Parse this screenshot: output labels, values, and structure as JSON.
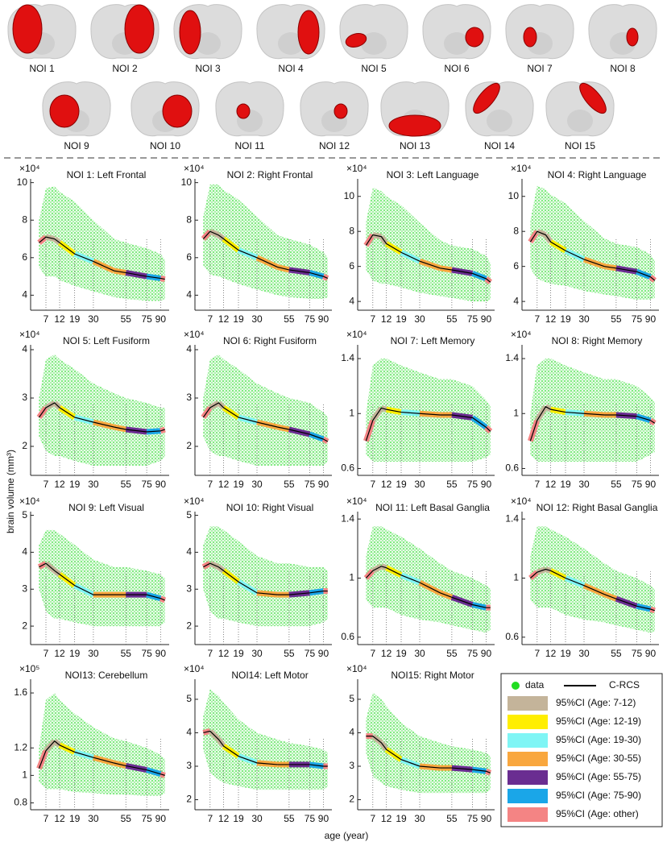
{
  "regions": [
    "NOI 1",
    "NOI 2",
    "NOI 3",
    "NOI 4",
    "NOI 5",
    "NOI 6",
    "NOI 7",
    "NOI 8",
    "NOI 9",
    "NOI 10",
    "NOI 11",
    "NOI 12",
    "NOI 13",
    "NOI 14",
    "NOI 15"
  ],
  "xlabel": "age (year)",
  "ylabel": "brain volume (mm³)",
  "legend": {
    "data": {
      "name": "data",
      "color": "#22dd22"
    },
    "fit": {
      "name": "C-RCS",
      "color": "#000000"
    },
    "intervals": [
      {
        "name": "95%CI (Age: 7-12)",
        "color": "#c4b49a"
      },
      {
        "name": "95%CI (Age: 12-19)",
        "color": "#ffee00"
      },
      {
        "name": "95%CI (Age: 19-30)",
        "color": "#7ff5f5"
      },
      {
        "name": "95%CI (Age: 30-55)",
        "color": "#f9a73e"
      },
      {
        "name": "95%CI (Age: 55-75)",
        "color": "#6a2d91"
      },
      {
        "name": "95%CI (Age: 75-90)",
        "color": "#1aa6e8"
      },
      {
        "name": "95%CI (Age: other)",
        "color": "#f48484"
      }
    ]
  },
  "chart_data": [
    {
      "type": "line",
      "title": "NOI 1: Left Frontal",
      "y_multiplier": "×10⁴",
      "x": [
        5,
        7,
        10,
        12,
        19,
        30,
        45,
        55,
        75,
        90,
        95
      ],
      "xlim": [
        3,
        100
      ],
      "xscale": "sqrt",
      "xticks": [
        7,
        12,
        19,
        30,
        55,
        75,
        90
      ],
      "ylim": [
        3.2,
        10.2
      ],
      "yticks": [
        4,
        6,
        8,
        10
      ],
      "fit": [
        6.8,
        7.1,
        7.0,
        6.8,
        6.2,
        5.8,
        5.3,
        5.2,
        5.0,
        4.9,
        4.85
      ],
      "data_low": [
        5.5,
        5,
        5,
        4.8,
        4.5,
        4.2,
        3.9,
        3.8,
        3.7,
        3.7,
        3.8
      ],
      "data_high": [
        8,
        9.7,
        9.8,
        9.5,
        9,
        8,
        7,
        6.8,
        6.5,
        6.2,
        5.9
      ]
    },
    {
      "type": "line",
      "title": "NOI 2: Right Frontal",
      "y_multiplier": "×10⁴",
      "x": [
        5,
        7,
        10,
        12,
        19,
        30,
        45,
        55,
        75,
        90,
        95
      ],
      "xlim": [
        3,
        100
      ],
      "xscale": "sqrt",
      "xticks": [
        7,
        12,
        19,
        30,
        55,
        75,
        90
      ],
      "ylim": [
        3.2,
        10.2
      ],
      "yticks": [
        4,
        6,
        8,
        10
      ],
      "fit": [
        7.0,
        7.4,
        7.2,
        7.0,
        6.4,
        6.0,
        5.5,
        5.35,
        5.2,
        5.0,
        4.9
      ],
      "data_low": [
        5.6,
        5.1,
        5,
        4.9,
        4.6,
        4.3,
        4,
        3.9,
        3.8,
        3.8,
        3.9
      ],
      "data_high": [
        8.2,
        9.9,
        9.9,
        9.6,
        9.1,
        8.2,
        7.2,
        7,
        6.7,
        6.3,
        6
      ]
    },
    {
      "type": "line",
      "title": "NOI 3: Left Language",
      "y_multiplier": "×10⁴",
      "x": [
        5,
        7,
        10,
        12,
        19,
        30,
        45,
        55,
        75,
        90,
        95
      ],
      "xlim": [
        3,
        100
      ],
      "xscale": "sqrt",
      "xticks": [
        7,
        12,
        19,
        30,
        55,
        75,
        90
      ],
      "ylim": [
        3.5,
        11
      ],
      "yticks": [
        4,
        6,
        8,
        10
      ],
      "fit": [
        7.2,
        7.8,
        7.7,
        7.3,
        6.8,
        6.3,
        5.9,
        5.8,
        5.6,
        5.3,
        5.1
      ],
      "data_low": [
        5.8,
        5.2,
        5,
        5,
        4.8,
        4.5,
        4.3,
        4.2,
        4,
        4,
        4.1
      ],
      "data_high": [
        8.5,
        10.5,
        10.3,
        10,
        9.5,
        8.5,
        7.5,
        7.2,
        7,
        6.6,
        6.2
      ]
    },
    {
      "type": "line",
      "title": "NOI 4: Right Language",
      "y_multiplier": "×10⁴",
      "x": [
        5,
        7,
        10,
        12,
        19,
        30,
        45,
        55,
        75,
        90,
        95
      ],
      "xlim": [
        3,
        100
      ],
      "xscale": "sqrt",
      "xticks": [
        7,
        12,
        19,
        30,
        55,
        75,
        90
      ],
      "ylim": [
        3.5,
        11
      ],
      "yticks": [
        4,
        6,
        8,
        10
      ],
      "fit": [
        7.4,
        8.0,
        7.8,
        7.4,
        6.9,
        6.4,
        6.0,
        5.9,
        5.7,
        5.4,
        5.2
      ],
      "data_low": [
        5.9,
        5.3,
        5.1,
        5,
        4.9,
        4.6,
        4.4,
        4.3,
        4.1,
        4.1,
        4.2
      ],
      "data_high": [
        8.6,
        10.6,
        10.4,
        10.1,
        9.6,
        8.6,
        7.6,
        7.3,
        7.1,
        6.7,
        6.3
      ]
    },
    {
      "type": "line",
      "title": "NOI 5: Left Fusiform",
      "y_multiplier": "×10⁴",
      "x": [
        5,
        7,
        10,
        12,
        19,
        30,
        45,
        55,
        75,
        90,
        95
      ],
      "xlim": [
        3,
        100
      ],
      "xscale": "sqrt",
      "xticks": [
        7,
        12,
        19,
        30,
        55,
        75,
        90
      ],
      "ylim": [
        1.4,
        4.1
      ],
      "yticks": [
        2,
        3,
        4
      ],
      "fit": [
        2.6,
        2.8,
        2.9,
        2.8,
        2.6,
        2.5,
        2.4,
        2.35,
        2.3,
        2.32,
        2.35
      ],
      "data_low": [
        2.2,
        1.9,
        1.8,
        1.8,
        1.7,
        1.6,
        1.6,
        1.6,
        1.6,
        1.7,
        1.8
      ],
      "data_high": [
        3.0,
        3.8,
        3.9,
        3.8,
        3.6,
        3.3,
        3.1,
        3.0,
        2.9,
        2.8,
        2.8
      ]
    },
    {
      "type": "line",
      "title": "NOI 6: Right Fusiform",
      "y_multiplier": "×10⁴",
      "x": [
        5,
        7,
        10,
        12,
        19,
        30,
        45,
        55,
        75,
        90,
        95
      ],
      "xlim": [
        3,
        100
      ],
      "xscale": "sqrt",
      "xticks": [
        7,
        12,
        19,
        30,
        55,
        75,
        90
      ],
      "ylim": [
        1.4,
        4.1
      ],
      "yticks": [
        2,
        3,
        4
      ],
      "fit": [
        2.6,
        2.8,
        2.9,
        2.8,
        2.6,
        2.5,
        2.4,
        2.35,
        2.25,
        2.15,
        2.1
      ],
      "data_low": [
        2.2,
        1.9,
        1.8,
        1.8,
        1.7,
        1.6,
        1.6,
        1.6,
        1.6,
        1.6,
        1.7
      ],
      "data_high": [
        3.0,
        3.8,
        3.9,
        3.8,
        3.6,
        3.3,
        3.1,
        3.0,
        2.9,
        2.7,
        2.6
      ]
    },
    {
      "type": "line",
      "title": "NOI 7: Left Memory",
      "y_multiplier": "×10⁴",
      "x": [
        5,
        7,
        10,
        12,
        19,
        30,
        45,
        55,
        75,
        90,
        95
      ],
      "xlim": [
        3,
        100
      ],
      "xscale": "sqrt",
      "xticks": [
        7,
        12,
        19,
        30,
        55,
        75,
        90
      ],
      "ylim": [
        0.55,
        1.5
      ],
      "yticks": [
        0.6,
        1,
        1.4
      ],
      "fit": [
        0.8,
        0.95,
        1.04,
        1.03,
        1.01,
        1.0,
        0.99,
        0.99,
        0.97,
        0.9,
        0.87
      ],
      "data_low": [
        0.7,
        0.65,
        0.65,
        0.65,
        0.65,
        0.65,
        0.65,
        0.65,
        0.65,
        0.68,
        0.7
      ],
      "data_high": [
        1.0,
        1.35,
        1.4,
        1.4,
        1.35,
        1.3,
        1.25,
        1.25,
        1.2,
        1.1,
        1.05
      ]
    },
    {
      "type": "line",
      "title": "NOI 8: Right Memory",
      "y_multiplier": "×10⁴",
      "x": [
        5,
        7,
        10,
        12,
        19,
        30,
        45,
        55,
        75,
        90,
        95
      ],
      "xlim": [
        3,
        100
      ],
      "xscale": "sqrt",
      "xticks": [
        7,
        12,
        19,
        30,
        55,
        75,
        90
      ],
      "ylim": [
        0.55,
        1.5
      ],
      "yticks": [
        0.6,
        1,
        1.4
      ],
      "fit": [
        0.8,
        0.95,
        1.05,
        1.03,
        1.01,
        1.0,
        0.99,
        0.99,
        0.98,
        0.95,
        0.93
      ],
      "data_low": [
        0.7,
        0.65,
        0.65,
        0.65,
        0.65,
        0.65,
        0.65,
        0.65,
        0.65,
        0.7,
        0.72
      ],
      "data_high": [
        1.0,
        1.35,
        1.4,
        1.4,
        1.35,
        1.3,
        1.25,
        1.25,
        1.2,
        1.12,
        1.08
      ]
    },
    {
      "type": "line",
      "title": "NOI 9: Left Visual",
      "y_multiplier": "×10⁴",
      "x": [
        5,
        7,
        10,
        12,
        19,
        30,
        45,
        55,
        75,
        90,
        95
      ],
      "xlim": [
        3,
        100
      ],
      "xscale": "sqrt",
      "xticks": [
        7,
        12,
        19,
        30,
        55,
        75,
        90
      ],
      "ylim": [
        1.5,
        5.1
      ],
      "yticks": [
        2,
        3,
        4,
        5
      ],
      "fit": [
        3.6,
        3.7,
        3.5,
        3.4,
        3.1,
        2.85,
        2.85,
        2.85,
        2.85,
        2.75,
        2.7
      ],
      "data_low": [
        3,
        2.4,
        2.2,
        2.2,
        2.1,
        2,
        2,
        2,
        2,
        2,
        2.1
      ],
      "data_high": [
        4.2,
        4.6,
        4.6,
        4.5,
        4.2,
        3.8,
        3.6,
        3.6,
        3.5,
        3.4,
        3.3
      ]
    },
    {
      "type": "line",
      "title": "NOI 10: Right Visual",
      "y_multiplier": "×10⁴",
      "x": [
        5,
        7,
        10,
        12,
        19,
        30,
        45,
        55,
        75,
        90,
        95
      ],
      "xlim": [
        3,
        100
      ],
      "xscale": "sqrt",
      "xticks": [
        7,
        12,
        19,
        30,
        55,
        75,
        90
      ],
      "ylim": [
        1.5,
        5.1
      ],
      "yticks": [
        2,
        3,
        4,
        5
      ],
      "fit": [
        3.6,
        3.7,
        3.6,
        3.5,
        3.2,
        2.9,
        2.85,
        2.85,
        2.9,
        2.95,
        2.95
      ],
      "data_low": [
        3,
        2.4,
        2.2,
        2.2,
        2.1,
        2,
        2,
        2,
        2,
        2.1,
        2.2
      ],
      "data_high": [
        4.2,
        4.7,
        4.7,
        4.6,
        4.3,
        3.9,
        3.7,
        3.7,
        3.6,
        3.6,
        3.5
      ]
    },
    {
      "type": "line",
      "title": "NOI 11: Left Basal Ganglia",
      "y_multiplier": "×10⁴",
      "x": [
        5,
        7,
        10,
        12,
        19,
        30,
        45,
        55,
        75,
        90,
        95
      ],
      "xlim": [
        3,
        100
      ],
      "xscale": "sqrt",
      "xticks": [
        7,
        12,
        19,
        30,
        55,
        75,
        90
      ],
      "ylim": [
        0.55,
        1.45
      ],
      "yticks": [
        0.6,
        1,
        1.4
      ],
      "fit": [
        1.0,
        1.05,
        1.08,
        1.07,
        1.02,
        0.97,
        0.9,
        0.87,
        0.82,
        0.8,
        0.8
      ],
      "data_low": [
        0.85,
        0.8,
        0.8,
        0.8,
        0.75,
        0.72,
        0.7,
        0.68,
        0.65,
        0.63,
        0.65
      ],
      "data_high": [
        1.15,
        1.35,
        1.35,
        1.33,
        1.28,
        1.2,
        1.1,
        1.05,
        1.0,
        0.95,
        0.93
      ]
    },
    {
      "type": "line",
      "title": "NOI 12: Right Basal Ganglia",
      "y_multiplier": "×10⁴",
      "x": [
        5,
        7,
        10,
        12,
        19,
        30,
        45,
        55,
        75,
        90,
        95
      ],
      "xlim": [
        3,
        100
      ],
      "xscale": "sqrt",
      "xticks": [
        7,
        12,
        19,
        30,
        55,
        75,
        90
      ],
      "ylim": [
        0.55,
        1.45
      ],
      "yticks": [
        0.6,
        1,
        1.4
      ],
      "fit": [
        1.0,
        1.04,
        1.06,
        1.05,
        1.0,
        0.95,
        0.89,
        0.86,
        0.81,
        0.79,
        0.78
      ],
      "data_low": [
        0.85,
        0.8,
        0.8,
        0.8,
        0.75,
        0.72,
        0.7,
        0.68,
        0.65,
        0.63,
        0.64
      ],
      "data_high": [
        1.15,
        1.35,
        1.35,
        1.33,
        1.28,
        1.2,
        1.1,
        1.05,
        1.0,
        0.95,
        0.92
      ]
    },
    {
      "type": "line",
      "title": "NOI13: Cerebellum",
      "y_multiplier": "×10⁵",
      "x": [
        5,
        7,
        10,
        12,
        19,
        30,
        45,
        55,
        75,
        90,
        95
      ],
      "xlim": [
        3,
        100
      ],
      "xscale": "sqrt",
      "xticks": [
        7,
        12,
        19,
        30,
        55,
        75,
        90
      ],
      "ylim": [
        0.75,
        1.7
      ],
      "yticks": [
        0.8,
        1,
        1.2,
        1.6
      ],
      "fit": [
        1.05,
        1.18,
        1.25,
        1.22,
        1.17,
        1.13,
        1.09,
        1.07,
        1.04,
        1.01,
        1.0
      ],
      "data_low": [
        0.95,
        0.9,
        0.9,
        0.9,
        0.88,
        0.87,
        0.86,
        0.86,
        0.85,
        0.85,
        0.87
      ],
      "data_high": [
        1.2,
        1.55,
        1.6,
        1.55,
        1.45,
        1.35,
        1.27,
        1.25,
        1.2,
        1.15,
        1.12
      ]
    },
    {
      "type": "line",
      "title": "NOI14: Left Motor",
      "y_multiplier": "×10⁴",
      "x": [
        5,
        7,
        10,
        12,
        19,
        30,
        45,
        55,
        75,
        90,
        95
      ],
      "xlim": [
        3,
        100
      ],
      "xscale": "sqrt",
      "xticks": [
        7,
        12,
        19,
        30,
        55,
        75,
        90
      ],
      "ylim": [
        1.7,
        5.6
      ],
      "yticks": [
        2,
        3,
        4,
        5
      ],
      "fit": [
        4.0,
        4.05,
        3.8,
        3.6,
        3.3,
        3.1,
        3.05,
        3.05,
        3.05,
        3.0,
        3.0
      ],
      "data_low": [
        3.5,
        2.8,
        2.6,
        2.5,
        2.4,
        2.3,
        2.3,
        2.3,
        2.3,
        2.3,
        2.4
      ],
      "data_high": [
        4.5,
        5.3,
        5.1,
        4.9,
        4.4,
        4.0,
        3.8,
        3.7,
        3.6,
        3.5,
        3.4
      ]
    },
    {
      "type": "line",
      "title": "NOI15: Right Motor",
      "y_multiplier": "×10⁴",
      "x": [
        5,
        7,
        10,
        12,
        19,
        30,
        45,
        55,
        75,
        90,
        95
      ],
      "xlim": [
        3,
        100
      ],
      "xscale": "sqrt",
      "xticks": [
        7,
        12,
        19,
        30,
        55,
        75,
        90
      ],
      "ylim": [
        1.7,
        5.6
      ],
      "yticks": [
        2,
        3,
        4,
        5
      ],
      "fit": [
        3.9,
        3.9,
        3.7,
        3.5,
        3.2,
        3.0,
        2.95,
        2.95,
        2.9,
        2.85,
        2.8
      ],
      "data_low": [
        3.4,
        2.7,
        2.5,
        2.4,
        2.3,
        2.2,
        2.2,
        2.2,
        2.2,
        2.2,
        2.3
      ],
      "data_high": [
        4.4,
        5.2,
        5.0,
        4.8,
        4.3,
        3.9,
        3.7,
        3.6,
        3.5,
        3.4,
        3.3
      ]
    }
  ]
}
